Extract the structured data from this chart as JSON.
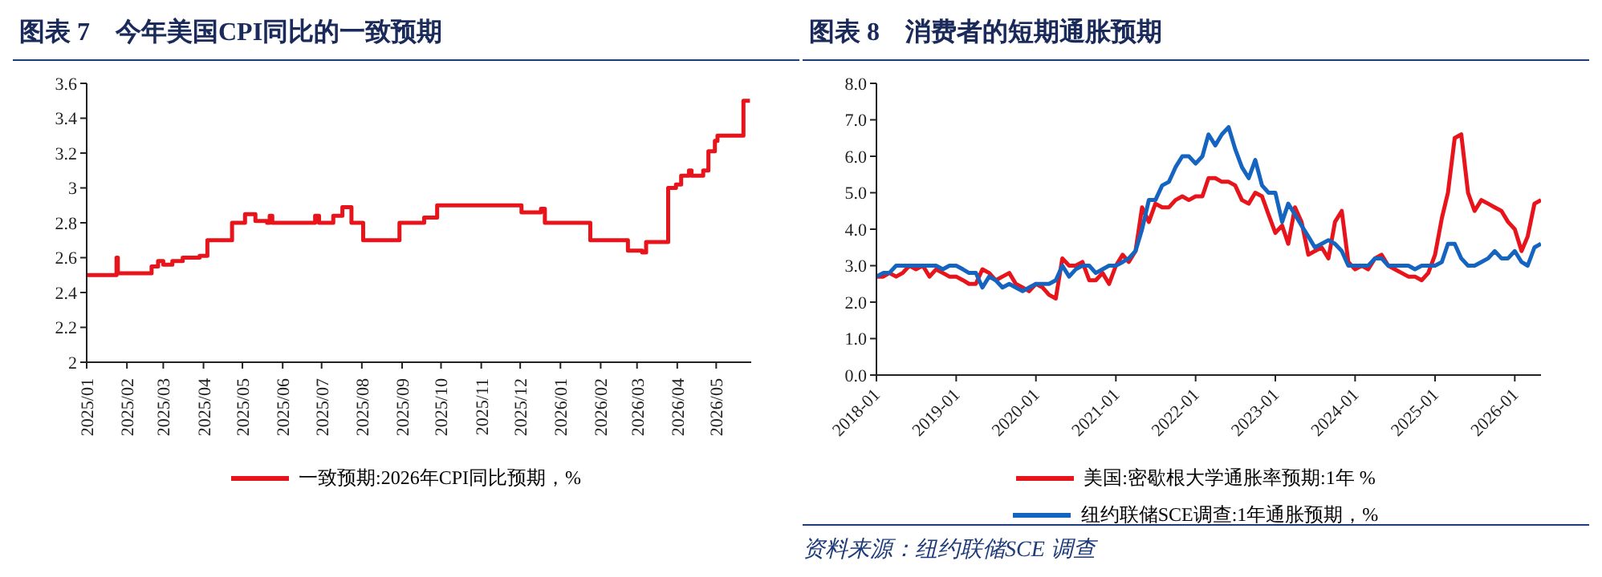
{
  "chart_data": [
    {
      "type": "step",
      "title": "图表 7　今年美国CPI同比的一致预期",
      "xlim": [
        "2025-01-01",
        "2026-05-28"
      ],
      "xticks": [
        {
          "value": "2025-01",
          "label": "2025/01"
        },
        {
          "value": "2025-02",
          "label": "2025/02"
        },
        {
          "value": "2025-03",
          "label": "2025/03"
        },
        {
          "value": "2025-04",
          "label": "2025/04"
        },
        {
          "value": "2025-05",
          "label": "2025/05"
        },
        {
          "value": "2025-06",
          "label": "2025/06"
        },
        {
          "value": "2025-07",
          "label": "2025/07"
        },
        {
          "value": "2025-08",
          "label": "2025/08"
        },
        {
          "value": "2025-09",
          "label": "2025/09"
        },
        {
          "value": "2025-10",
          "label": "2025/10"
        },
        {
          "value": "2025-11",
          "label": "2025/11"
        },
        {
          "value": "2025-12",
          "label": "2025/12"
        },
        {
          "value": "2026-01",
          "label": "2026/01"
        },
        {
          "value": "2026-02",
          "label": "2026/02"
        },
        {
          "value": "2026-03",
          "label": "2026/03"
        },
        {
          "value": "2026-04",
          "label": "2026/04"
        },
        {
          "value": "2026-05",
          "label": "2026/05"
        }
      ],
      "ylim": [
        2,
        3.6
      ],
      "yticks": [
        2,
        2.2,
        2.4,
        2.6,
        2.8,
        3,
        3.2,
        3.4,
        3.6
      ],
      "legend": "bottom",
      "x": [
        "2025-01-01",
        "2025-01-24",
        "2025-01-25",
        "2025-02-20",
        "2025-02-25",
        "2025-03-01",
        "2025-03-08",
        "2025-03-16",
        "2025-03-29",
        "2025-04-04",
        "2025-04-23",
        "2025-05-03",
        "2025-05-11",
        "2025-05-20",
        "2025-05-22",
        "2025-05-24",
        "2025-06-26",
        "2025-06-29",
        "2025-07-10",
        "2025-07-17",
        "2025-07-24",
        "2025-08-02",
        "2025-08-30",
        "2025-09-18",
        "2025-09-28",
        "2025-12-02",
        "2025-12-17",
        "2025-12-20",
        "2026-01-24",
        "2026-02-22",
        "2026-03-05",
        "2026-03-08",
        "2026-03-25",
        "2026-03-31",
        "2026-04-04",
        "2026-04-10",
        "2026-04-12",
        "2026-04-21",
        "2026-04-25",
        "2026-04-30",
        "2026-05-02",
        "2026-05-22",
        "2026-05-27"
      ],
      "series": [
        {
          "name": "一致预期:2026年CPI同比预期，%",
          "color": "#e8141c",
          "values": [
            2.5,
            2.6,
            2.51,
            2.55,
            2.58,
            2.56,
            2.58,
            2.6,
            2.61,
            2.7,
            2.8,
            2.85,
            2.81,
            2.8,
            2.84,
            2.8,
            2.84,
            2.8,
            2.84,
            2.89,
            2.8,
            2.7,
            2.8,
            2.83,
            2.9,
            2.86,
            2.88,
            2.8,
            2.7,
            2.64,
            2.63,
            2.69,
            3.0,
            3.02,
            3.07,
            3.1,
            3.07,
            3.1,
            3.21,
            3.27,
            3.3,
            3.5,
            3.5
          ]
        }
      ]
    },
    {
      "type": "line",
      "title": "图表 8　消费者的短期通胀预期",
      "annotations": [
        "资料来源：纽约联储SCE 调查"
      ],
      "xlim": [
        "2018-01",
        "2026-05"
      ],
      "xticks": [
        "2018-01",
        "2019-01",
        "2020-01",
        "2021-01",
        "2022-01",
        "2023-01",
        "2024-01",
        "2025-01",
        "2026-01"
      ],
      "ylim": [
        0,
        8
      ],
      "yticks": [
        {
          "value": 0,
          "label": "0.0"
        },
        {
          "value": 1,
          "label": "1.0"
        },
        {
          "value": 2,
          "label": "2.0"
        },
        {
          "value": 3,
          "label": "3.0"
        },
        {
          "value": 4,
          "label": "4.0"
        },
        {
          "value": 5,
          "label": "5.0"
        },
        {
          "value": 6,
          "label": "6.0"
        },
        {
          "value": 7,
          "label": "7.0"
        },
        {
          "value": 8,
          "label": "8.0"
        }
      ],
      "legend": "bottom",
      "x": [
        "2018-01",
        "2018-02",
        "2018-03",
        "2018-04",
        "2018-05",
        "2018-06",
        "2018-07",
        "2018-08",
        "2018-09",
        "2018-10",
        "2018-11",
        "2018-12",
        "2019-01",
        "2019-02",
        "2019-03",
        "2019-04",
        "2019-05",
        "2019-06",
        "2019-07",
        "2019-08",
        "2019-09",
        "2019-10",
        "2019-11",
        "2019-12",
        "2020-01",
        "2020-02",
        "2020-03",
        "2020-04",
        "2020-05",
        "2020-06",
        "2020-07",
        "2020-08",
        "2020-09",
        "2020-10",
        "2020-11",
        "2020-12",
        "2021-01",
        "2021-02",
        "2021-03",
        "2021-04",
        "2021-05",
        "2021-06",
        "2021-07",
        "2021-08",
        "2021-09",
        "2021-10",
        "2021-11",
        "2021-12",
        "2022-01",
        "2022-02",
        "2022-03",
        "2022-04",
        "2022-05",
        "2022-06",
        "2022-07",
        "2022-08",
        "2022-09",
        "2022-10",
        "2022-11",
        "2022-12",
        "2023-01",
        "2023-02",
        "2023-03",
        "2023-04",
        "2023-05",
        "2023-06",
        "2023-07",
        "2023-08",
        "2023-09",
        "2023-10",
        "2023-11",
        "2023-12",
        "2024-01",
        "2024-02",
        "2024-03",
        "2024-04",
        "2024-05",
        "2024-06",
        "2024-07",
        "2024-08",
        "2024-09",
        "2024-10",
        "2024-11",
        "2024-12",
        "2025-01",
        "2025-02",
        "2025-03",
        "2025-04",
        "2025-05",
        "2025-06",
        "2025-07",
        "2025-08",
        "2025-09",
        "2025-10",
        "2025-11",
        "2025-12",
        "2026-01",
        "2026-02",
        "2026-03",
        "2026-04",
        "2026-05"
      ],
      "series": [
        {
          "name": "美国:密歇根大学通胀率预期:1年 %",
          "color": "#e8141c",
          "values": [
            2.7,
            2.7,
            2.8,
            2.7,
            2.8,
            3.0,
            2.9,
            3.0,
            2.7,
            2.9,
            2.8,
            2.7,
            2.7,
            2.6,
            2.5,
            2.5,
            2.9,
            2.8,
            2.6,
            2.7,
            2.8,
            2.5,
            2.4,
            2.3,
            2.5,
            2.4,
            2.2,
            2.1,
            3.2,
            3.0,
            3.0,
            3.1,
            2.6,
            2.6,
            2.8,
            2.5,
            3.0,
            3.3,
            3.1,
            3.4,
            4.6,
            4.2,
            4.7,
            4.6,
            4.6,
            4.8,
            4.9,
            4.8,
            4.9,
            4.9,
            5.4,
            5.4,
            5.3,
            5.3,
            5.2,
            4.8,
            4.7,
            5.0,
            4.9,
            4.4,
            3.9,
            4.1,
            3.6,
            4.6,
            4.2,
            3.3,
            3.4,
            3.5,
            3.2,
            4.2,
            4.5,
            3.1,
            2.9,
            3.0,
            2.9,
            3.2,
            3.3,
            3.0,
            2.9,
            2.8,
            2.7,
            2.7,
            2.6,
            2.8,
            3.3,
            4.3,
            5.0,
            6.5,
            6.6,
            5.0,
            4.5,
            4.8,
            4.7,
            4.6,
            4.5,
            4.2,
            4.0,
            3.4,
            3.8,
            4.7,
            4.8
          ]
        },
        {
          "name": "纽约联储SCE调查:1年通胀预期，%",
          "color": "#1565c0",
          "values": [
            2.7,
            2.8,
            2.8,
            3.0,
            3.0,
            3.0,
            3.0,
            3.0,
            3.0,
            3.0,
            2.9,
            3.0,
            3.0,
            2.9,
            2.8,
            2.8,
            2.4,
            2.7,
            2.6,
            2.4,
            2.5,
            2.4,
            2.3,
            2.4,
            2.5,
            2.5,
            2.5,
            2.6,
            3.0,
            2.7,
            2.9,
            3.0,
            3.0,
            2.8,
            2.9,
            3.0,
            3.0,
            3.1,
            3.2,
            3.4,
            4.0,
            4.8,
            4.8,
            5.2,
            5.3,
            5.7,
            6.0,
            6.0,
            5.8,
            6.0,
            6.6,
            6.3,
            6.6,
            6.8,
            6.2,
            5.7,
            5.4,
            5.9,
            5.2,
            5.0,
            5.0,
            4.2,
            4.7,
            4.4,
            4.1,
            3.8,
            3.5,
            3.6,
            3.7,
            3.6,
            3.4,
            3.0,
            3.0,
            3.0,
            3.0,
            3.2,
            3.2,
            3.0,
            3.0,
            3.0,
            3.0,
            2.9,
            3.0,
            3.0,
            3.0,
            3.1,
            3.6,
            3.6,
            3.2,
            3.0,
            3.0,
            3.1,
            3.2,
            3.4,
            3.2,
            3.2,
            3.4,
            3.1,
            3.0,
            3.5,
            3.6
          ]
        }
      ]
    }
  ]
}
